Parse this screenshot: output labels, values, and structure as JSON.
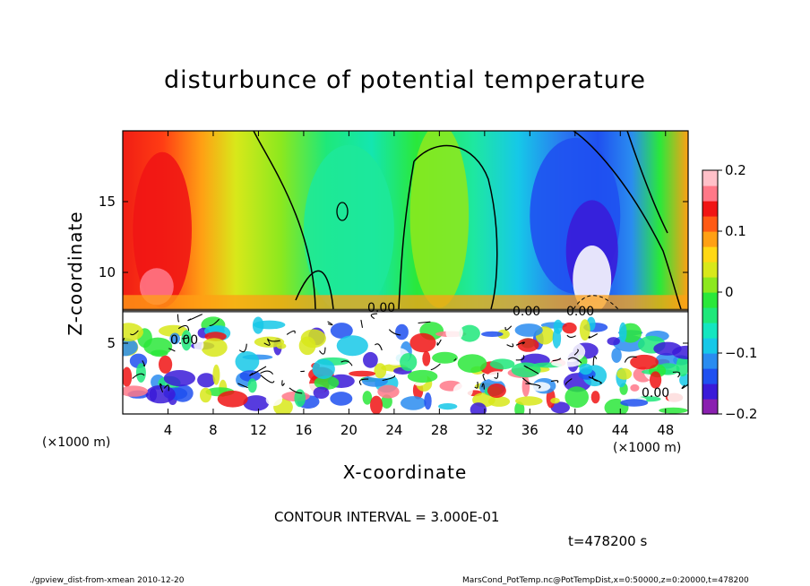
{
  "chart_data": {
    "type": "heatmap",
    "title": "disturbunce of potential temperature",
    "xlabel": "X-coordinate",
    "ylabel": "Z-coordinate",
    "x_unit_left": "(×1000 m)",
    "x_unit_right": "(×1000 m)",
    "xlim": [
      0,
      50
    ],
    "ylim": [
      0,
      20
    ],
    "xticks": [
      4,
      8,
      12,
      16,
      20,
      24,
      28,
      32,
      36,
      40,
      44,
      48
    ],
    "yticks": [
      5,
      10,
      15
    ],
    "colorbar": {
      "range": [
        -0.2,
        0.2
      ],
      "ticks": [
        0.2,
        0.1,
        0,
        -0.1,
        -0.2
      ],
      "tick_labels": [
        "0.2",
        "0.1",
        "0",
        "−0.1",
        "−0.2"
      ],
      "colors": [
        "#8a1fb0",
        "#3a1ad8",
        "#1f50f0",
        "#2a8cf0",
        "#16c8e8",
        "#14e6c0",
        "#1ee87a",
        "#2ae83a",
        "#8ce81e",
        "#d8e81a",
        "#ffd814",
        "#ffa014",
        "#ff5a14",
        "#f01414",
        "#ff7888",
        "#ffc0c8"
      ]
    },
    "contour_label": "0.00",
    "contour_interval": "CONTOUR INTERVAL = 3.000E-01"
  },
  "time_label": "t=478200 s",
  "footer_left": "./gpview_dist-from-xmean  2010-12-20",
  "footer_right": "MarsCond_PotTemp.nc@PotTempDist,x=0:50000,z=0:20000,t=478200"
}
